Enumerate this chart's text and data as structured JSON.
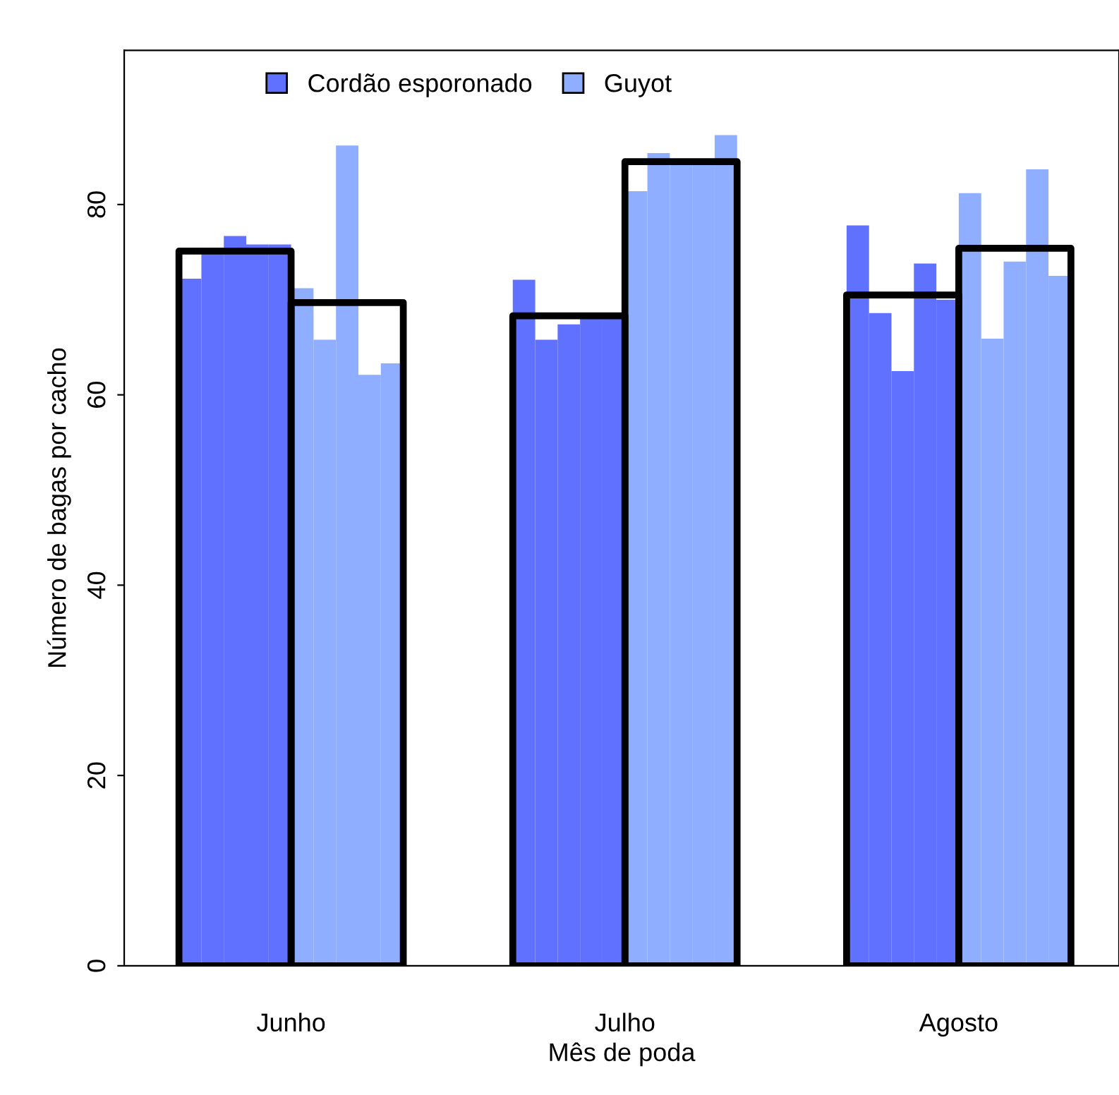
{
  "chart_data": {
    "type": "bar",
    "xlabel": "Mês de poda",
    "ylabel": "Número de bagas por cacho",
    "categories": [
      "Junho",
      "Julho",
      "Agosto"
    ],
    "series": [
      {
        "name": "Cordão esporonado",
        "color": "#6070ff",
        "values": [
          72.2,
          72.1,
          77.8
        ]
      },
      {
        "color": "#6070ff",
        "values": [
          75.0,
          65.8,
          68.6
        ]
      },
      {
        "color": "#6070ff",
        "values": [
          76.7,
          67.4,
          62.5
        ]
      },
      {
        "color": "#6070ff",
        "values": [
          75.8,
          68.1,
          73.8
        ]
      },
      {
        "color": "#6070ff",
        "values": [
          75.8,
          68.1,
          70.0
        ]
      },
      {
        "name": "Guyot",
        "color": "#90aeff",
        "values": [
          71.2,
          81.4,
          81.2
        ]
      },
      {
        "color": "#90aeff",
        "values": [
          65.8,
          85.4,
          65.9
        ]
      },
      {
        "color": "#90aeff",
        "values": [
          86.2,
          84.2,
          74.0
        ]
      },
      {
        "color": "#90aeff",
        "values": [
          62.1,
          84.2,
          83.7
        ]
      },
      {
        "color": "#90aeff",
        "values": [
          63.3,
          87.3,
          72.5
        ]
      },
      {
        "color": "#000000",
        "line_style": "solid",
        "values": [
          75.1,
          68.3,
          70.5
        ]
      },
      {
        "color": "#000000",
        "line_style": "solid",
        "values": [
          69.7,
          84.5,
          75.4
        ]
      }
    ],
    "ylim": [
      0,
      96.2
    ],
    "yticks": [
      0,
      20,
      40,
      60,
      80
    ],
    "grid": false,
    "legend": "top"
  }
}
